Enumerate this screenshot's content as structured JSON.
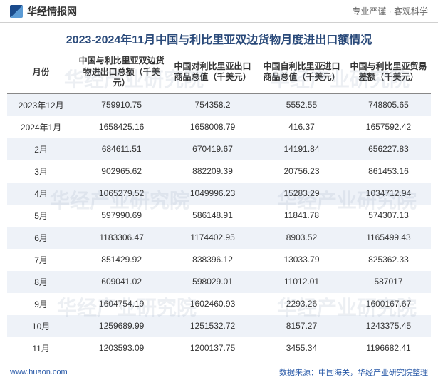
{
  "header": {
    "brand": "华经情报网",
    "tagline": "专业严谨 · 客观科学"
  },
  "title": "2023-2024年11月中国与利比里亚双边货物月度进出口额情况",
  "watermark": "华经产业研究院",
  "table": {
    "columns": [
      "月份",
      "中国与利比里亚双边货物进出口总额（千美元）",
      "中国对利比里亚出口商品总值（千美元）",
      "中国自利比里亚进口商品总值（千美元）",
      "中国与利比里亚贸易差额（千美元）"
    ],
    "rows": [
      [
        "2023年12月",
        "759910.75",
        "754358.2",
        "5552.55",
        "748805.65"
      ],
      [
        "2024年1月",
        "1658425.16",
        "1658008.79",
        "416.37",
        "1657592.42"
      ],
      [
        "2月",
        "684611.51",
        "670419.67",
        "14191.84",
        "656227.83"
      ],
      [
        "3月",
        "902965.62",
        "882209.39",
        "20756.23",
        "861453.16"
      ],
      [
        "4月",
        "1065279.52",
        "1049996.23",
        "15283.29",
        "1034712.94"
      ],
      [
        "5月",
        "597990.69",
        "586148.91",
        "11841.78",
        "574307.13"
      ],
      [
        "6月",
        "1183306.47",
        "1174402.95",
        "8903.52",
        "1165499.43"
      ],
      [
        "7月",
        "851429.92",
        "838396.12",
        "13033.79",
        "825362.33"
      ],
      [
        "8月",
        "609041.02",
        "598029.01",
        "11012.01",
        "587017"
      ],
      [
        "9月",
        "1604754.19",
        "1602460.93",
        "2293.26",
        "1600167.67"
      ],
      [
        "10月",
        "1259689.99",
        "1251532.72",
        "8157.27",
        "1243375.45"
      ],
      [
        "11月",
        "1203593.09",
        "1200137.75",
        "3455.34",
        "1196682.41"
      ]
    ],
    "column_widths": [
      "16%",
      "22%",
      "21%",
      "21%",
      "20%"
    ],
    "header_bg": "#ffffff",
    "row_odd_bg": "#eef2f8",
    "row_even_bg": "#ffffff",
    "text_color": "#333333",
    "title_color": "#2a4a7a",
    "font_size_body": 12,
    "font_size_header": 12,
    "font_size_title": 16
  },
  "footer": {
    "left": "www.huaon.com",
    "right": "数据来源：中国海关，华经产业研究院整理"
  }
}
